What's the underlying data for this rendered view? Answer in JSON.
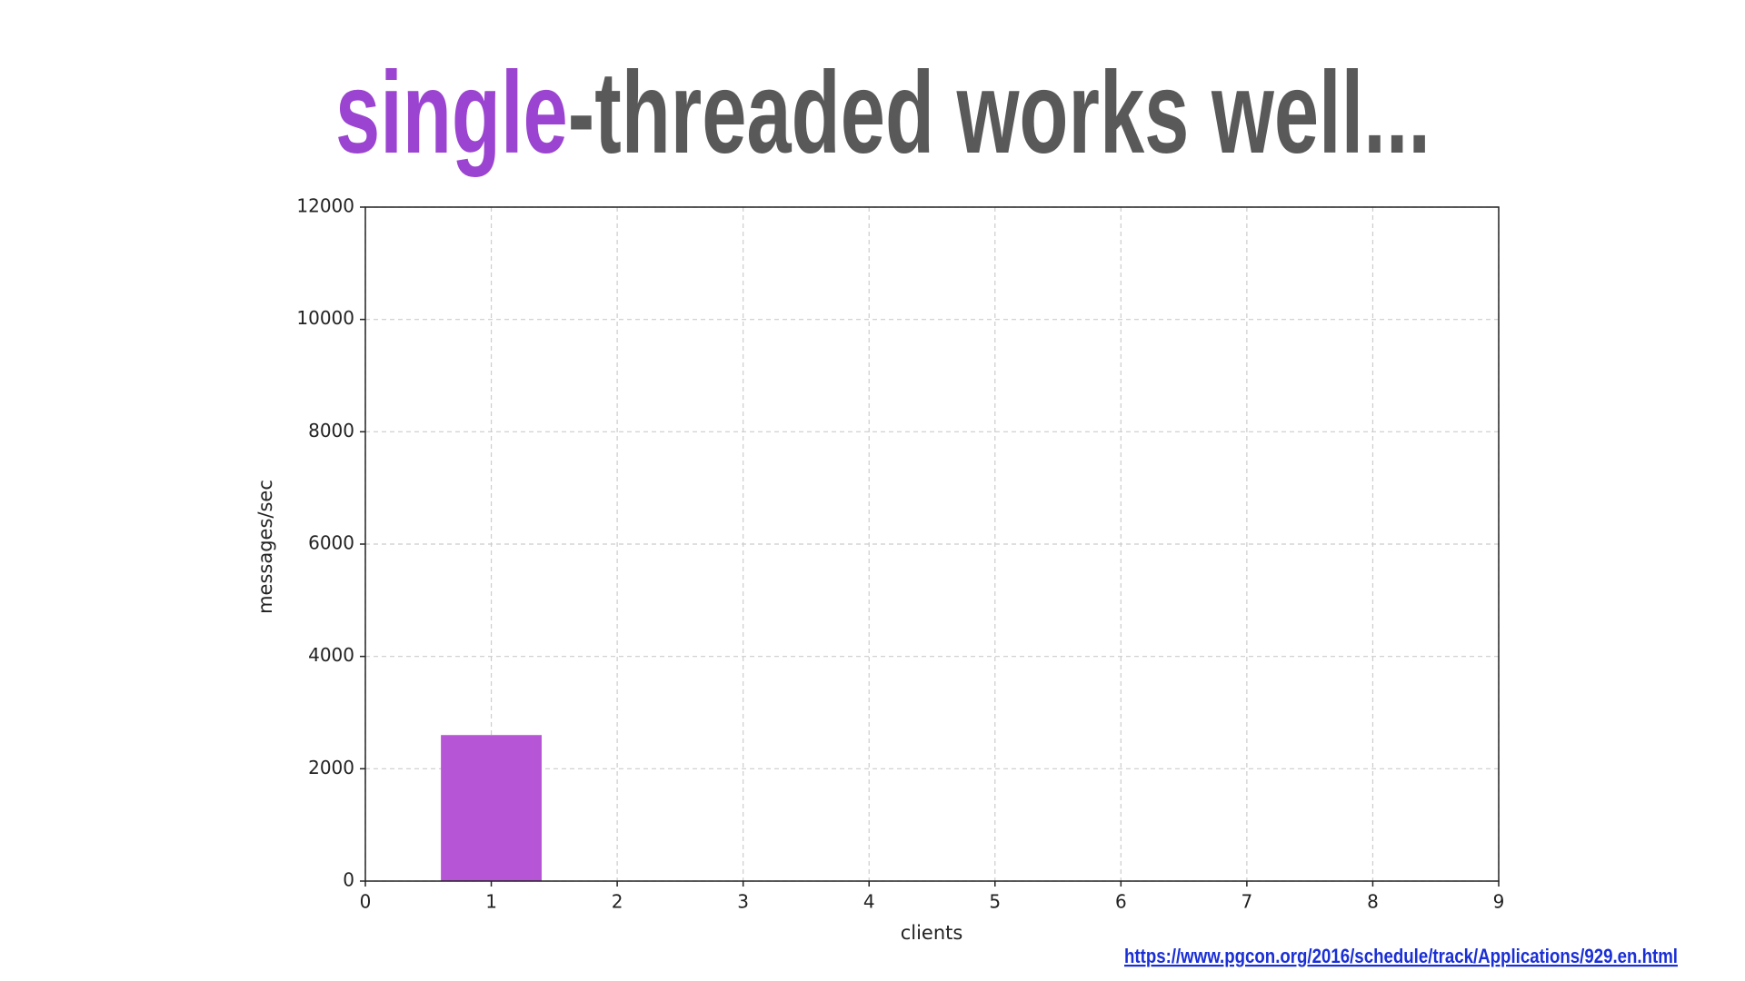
{
  "chart_data": {
    "type": "bar",
    "title": [
      "single",
      "-threaded works well..."
    ],
    "title_colors": [
      "#9b44d1",
      "#595959"
    ],
    "x": [
      1
    ],
    "values": [
      2600
    ],
    "color": "#b655d6",
    "bar_width": 0.8,
    "xlim": [
      0,
      9
    ],
    "xticks": [
      0,
      1,
      2,
      3,
      4,
      5,
      6,
      7,
      8,
      9
    ],
    "ylim": [
      0,
      12000
    ],
    "yticks": [
      0,
      2000,
      4000,
      6000,
      8000,
      10000,
      12000
    ],
    "xlabel": "clients",
    "ylabel": "messages/sec",
    "grid": true,
    "source": "https://www.pgcon.org/2016/schedule/track/Applications/929.en.html"
  }
}
